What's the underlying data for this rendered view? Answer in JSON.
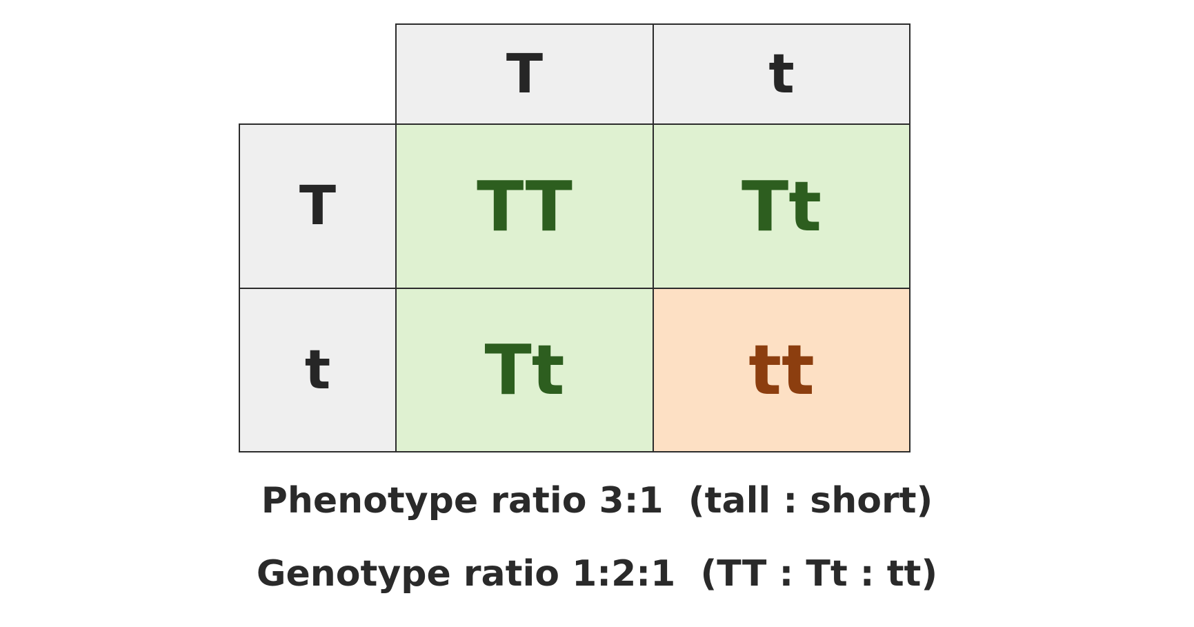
{
  "punnett_square": {
    "column_alleles": [
      "T",
      "t"
    ],
    "row_alleles": [
      "T",
      "t"
    ],
    "cells": [
      [
        "TT",
        "Tt"
      ],
      [
        "Tt",
        "tt"
      ]
    ]
  },
  "summary": {
    "phenotype": "Phenotype ratio 3:1  (tall : short)",
    "genotype": "Genotype ratio 1:2:1  (TT : Tt : tt)"
  }
}
